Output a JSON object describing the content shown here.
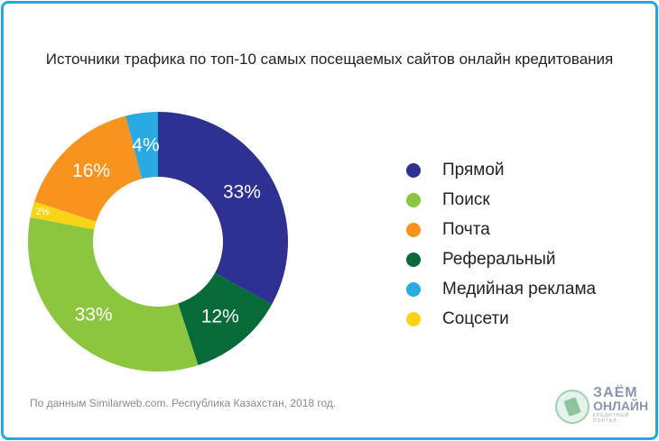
{
  "chart_data": {
    "type": "pie",
    "donut": true,
    "title": "Источники трафика по топ-10 самых посещаемых сайтов онлайн кредитования",
    "slices": [
      {
        "label": "Прямой",
        "value": 33,
        "display": "33%",
        "color": "#2e3192"
      },
      {
        "label": "Реферальный",
        "value": 12,
        "display": "12%",
        "color": "#066b38"
      },
      {
        "label": "Поиск",
        "value": 33,
        "display": "33%",
        "color": "#8cc63f"
      },
      {
        "label": "Соцсети",
        "value": 2,
        "display": "2%",
        "color": "#f7d418"
      },
      {
        "label": "Почта",
        "value": 16,
        "display": "16%",
        "color": "#f7931e"
      },
      {
        "label": "Медийная реклама",
        "value": 4,
        "display": "4%",
        "color": "#29abe2"
      }
    ],
    "legend_order": [
      "Прямой",
      "Поиск",
      "Почта",
      "Реферальный",
      "Медийная реклама",
      "Соцсети"
    ],
    "legend_placement": "right"
  },
  "source": "По данным Similarweb.com. Республика Казахстан, 2018 год.",
  "logo": {
    "line1": "ЗАЁМ",
    "line2": "ОНЛАЙН",
    "line3": "КРЕДИТНЫЙ",
    "line4": "ПОРТАЛ"
  }
}
